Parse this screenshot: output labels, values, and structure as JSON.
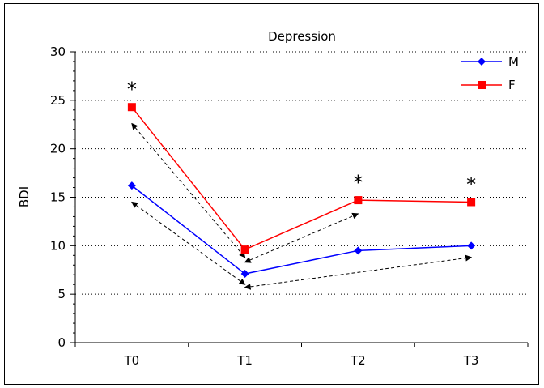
{
  "chart_data": {
    "type": "line",
    "title": "Depression",
    "xlabel": "",
    "ylabel": "BDI",
    "categories": [
      "T0",
      "T1",
      "T2",
      "T3"
    ],
    "ylim": [
      0,
      30
    ],
    "yticks": [
      "0",
      "5",
      "10",
      "15",
      "20",
      "25",
      "30"
    ],
    "grid": "horizontal dotted",
    "legend_position": "top-right",
    "series": [
      {
        "name": "M",
        "color": "#0000ff",
        "marker": "diamond",
        "values": [
          16.2,
          7.1,
          9.5,
          10.0
        ]
      },
      {
        "name": "F",
        "color": "#ff0000",
        "marker": "square",
        "values": [
          24.3,
          9.6,
          14.7,
          14.5
        ]
      }
    ],
    "annotations": [
      {
        "text": "*",
        "category": "T0",
        "y": 26.6
      },
      {
        "text": "*",
        "category": "T2",
        "y": 17.0
      },
      {
        "text": "*",
        "category": "T3",
        "y": 16.8
      }
    ],
    "arrows": [
      {
        "from": [
          "T0",
          14.5
        ],
        "to": [
          "T1",
          6.0
        ],
        "double": true
      },
      {
        "from": [
          "T0",
          22.6
        ],
        "to": [
          "T1",
          8.8
        ],
        "double": true
      },
      {
        "from": [
          "T1",
          5.7
        ],
        "to": [
          "T3",
          8.8
        ],
        "double": true
      },
      {
        "from": [
          "T1",
          8.3
        ],
        "to": [
          "T2",
          13.3
        ],
        "double": true
      }
    ]
  }
}
